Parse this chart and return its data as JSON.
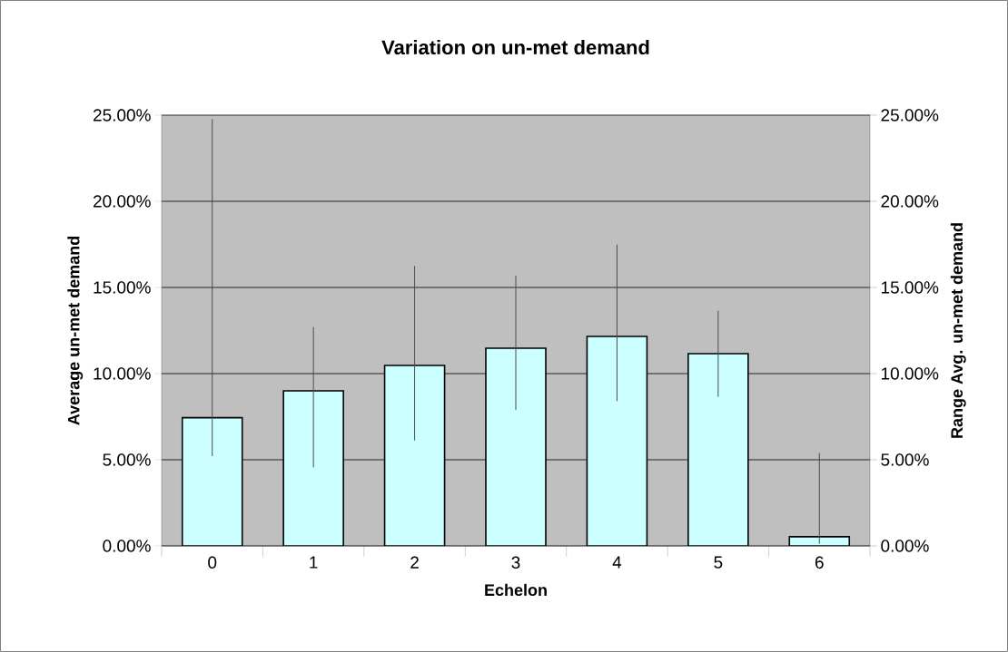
{
  "chart_data": {
    "type": "bar",
    "title": "Variation on un-met demand",
    "xlabel": "Echelon",
    "ylabel": "Average un-met demand",
    "y2label": "Range Avg. un-met demand",
    "categories": [
      "0",
      "1",
      "2",
      "3",
      "4",
      "5",
      "6"
    ],
    "values": [
      7.44,
      9.0,
      10.47,
      11.47,
      12.16,
      11.16,
      0.53
    ],
    "errors": [
      [
        5.21,
        24.77
      ],
      [
        4.56,
        12.7
      ],
      [
        6.12,
        16.25
      ],
      [
        7.89,
        15.68
      ],
      [
        8.4,
        17.49
      ],
      [
        8.65,
        13.65
      ],
      [
        0.12,
        5.39
      ]
    ],
    "color": "#ccffff",
    "ylim": [
      0,
      25
    ],
    "yticks": [
      {
        "value": 0,
        "label": "0.00%"
      },
      {
        "value": 5,
        "label": "5.00%"
      },
      {
        "value": 10,
        "label": "10.00%"
      },
      {
        "value": 15,
        "label": "15.00%"
      },
      {
        "value": 20,
        "label": "20.00%"
      },
      {
        "value": 25,
        "label": "25.00%"
      }
    ],
    "y2lim": [
      0,
      25
    ],
    "y2ticks": [
      {
        "value": 0,
        "label": "0.00%"
      },
      {
        "value": 5,
        "label": "5.00%"
      },
      {
        "value": 10,
        "label": "10.00%"
      },
      {
        "value": 15,
        "label": "15.00%"
      },
      {
        "value": 20,
        "label": "20.00%"
      },
      {
        "value": 25,
        "label": "25.00%"
      }
    ],
    "grid": "y"
  }
}
